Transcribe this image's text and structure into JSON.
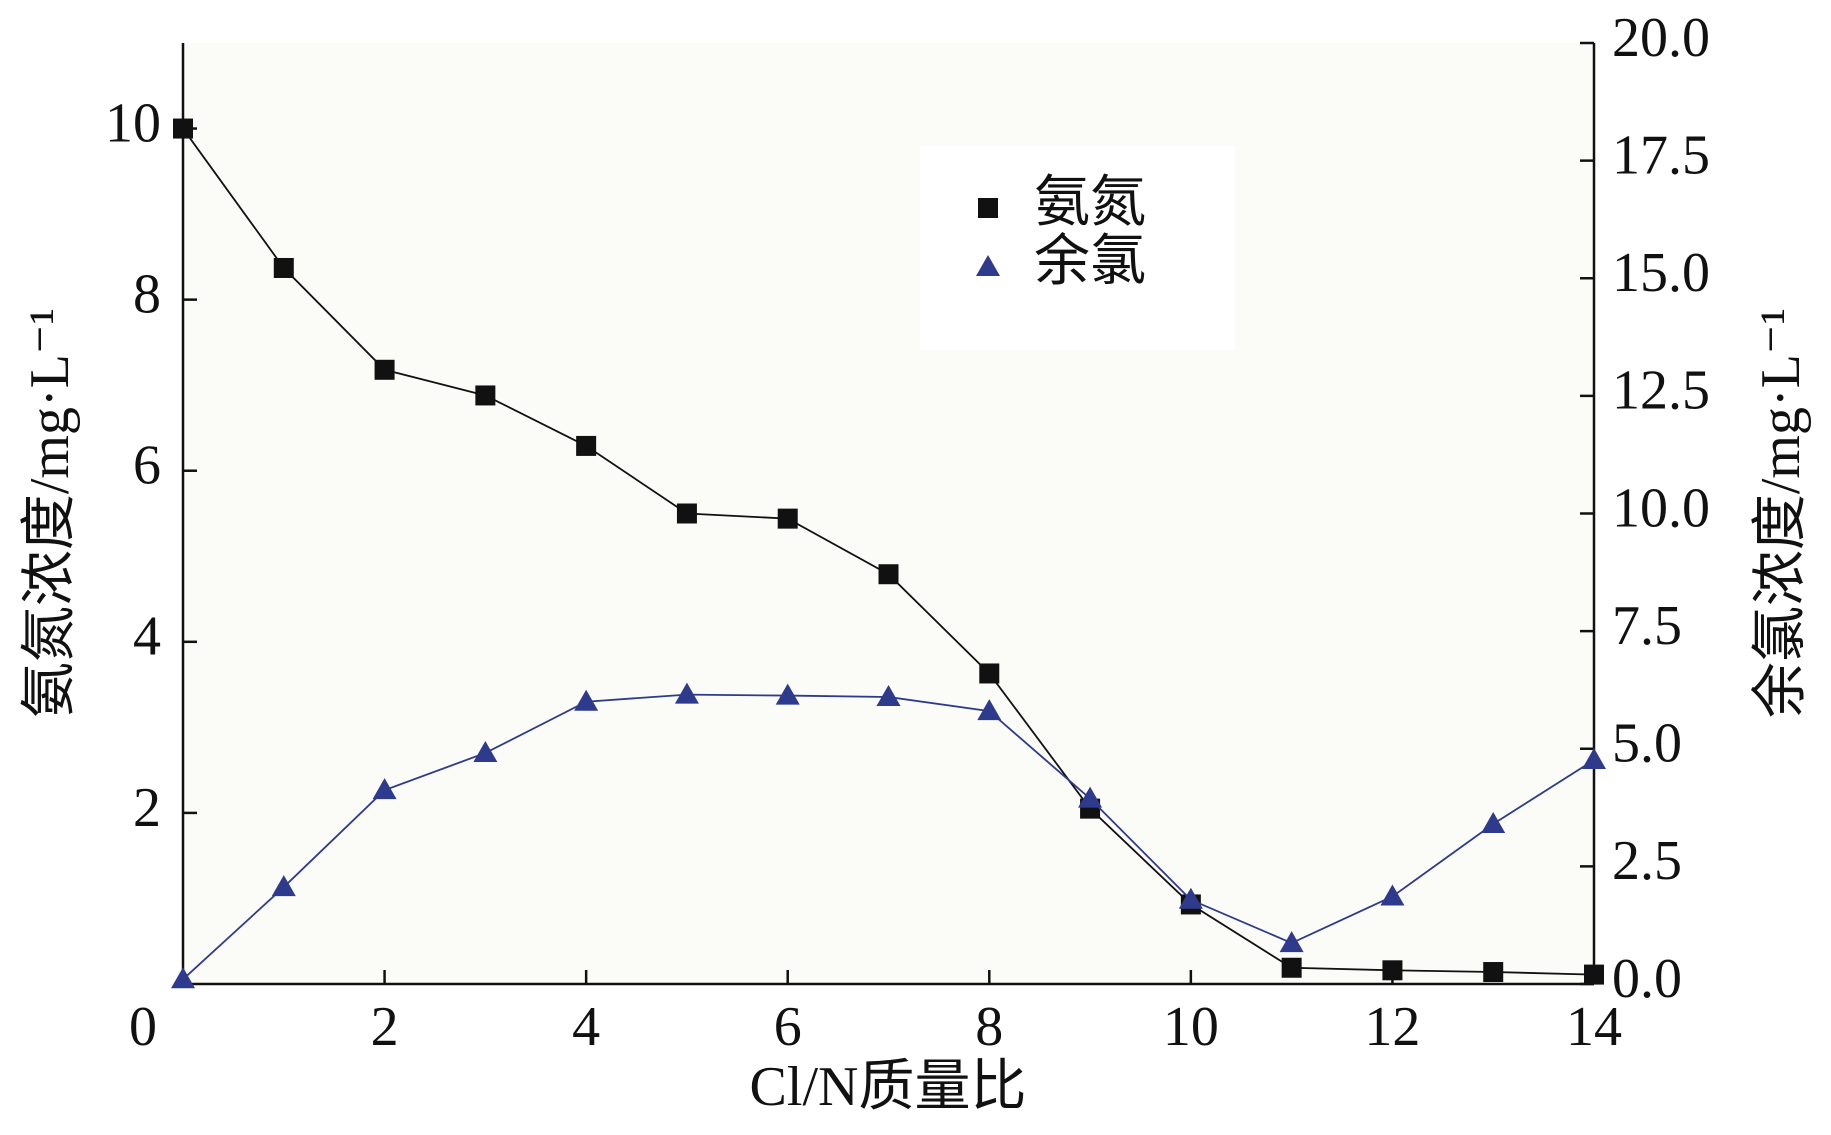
{
  "chart_data": {
    "type": "line",
    "x_label": "Cl/N质量比",
    "y_label": "氨氮浓度/mg·L⁻¹",
    "y2_label": "余氯浓度/mg·L⁻¹",
    "x": [
      0,
      1,
      2,
      3,
      4,
      5,
      6,
      7,
      8,
      9,
      10,
      11,
      12,
      13,
      14
    ],
    "xlim": [
      0,
      14
    ],
    "xticks": [
      0,
      2,
      4,
      6,
      8,
      10,
      12,
      14
    ],
    "ylim": [
      0,
      11
    ],
    "yticks": [
      2,
      4,
      6,
      8,
      10
    ],
    "y2lim": [
      0,
      20
    ],
    "y2ticks": [
      {
        "value": 0,
        "label": "0.0"
      },
      2.5,
      {
        "value": 5,
        "label": "5.0"
      },
      7.5,
      {
        "value": 10,
        "label": "10.0"
      },
      12.5,
      {
        "value": 15,
        "label": "15.0"
      },
      17.5,
      {
        "value": 20,
        "label": "20.0"
      }
    ],
    "series": [
      {
        "name": "氨氮",
        "color": "#111111",
        "marker": "square",
        "values": [
          10,
          8.37,
          7.18,
          6.88,
          6.29,
          5.5,
          5.44,
          4.79,
          3.63,
          2.05,
          0.93,
          0.19,
          0.16,
          0.14,
          0.11
        ]
      },
      {
        "name": "余氯",
        "color": "#2e3a8c",
        "marker": "triangle",
        "axis": "y2",
        "values": [
          0.1,
          2.06,
          4.12,
          4.91,
          6.0,
          6.15,
          6.13,
          6.1,
          5.8,
          3.94,
          1.79,
          0.87,
          1.86,
          3.4,
          4.76
        ]
      }
    ]
  }
}
